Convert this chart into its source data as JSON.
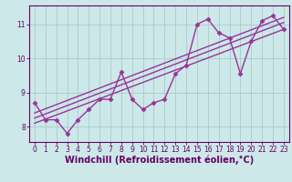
{
  "title": "",
  "xlabel": "Windchill (Refroidissement éolien,°C)",
  "ylabel": "",
  "bg_color": "#cce8e8",
  "line_color": "#993399",
  "grid_color": "#aacccc",
  "xlim": [
    -0.5,
    23.5
  ],
  "ylim": [
    7.55,
    11.55
  ],
  "yticks": [
    8,
    9,
    10,
    11
  ],
  "xticks": [
    0,
    1,
    2,
    3,
    4,
    5,
    6,
    7,
    8,
    9,
    10,
    11,
    12,
    13,
    14,
    15,
    16,
    17,
    18,
    19,
    20,
    21,
    22,
    23
  ],
  "x_data": [
    0,
    1,
    2,
    3,
    4,
    5,
    6,
    7,
    8,
    9,
    10,
    11,
    12,
    13,
    14,
    15,
    16,
    17,
    18,
    19,
    20,
    21,
    22,
    23
  ],
  "y_data": [
    8.7,
    8.2,
    8.2,
    7.8,
    8.2,
    8.5,
    8.8,
    8.8,
    9.6,
    8.8,
    8.5,
    8.7,
    8.8,
    9.55,
    9.8,
    11.0,
    11.15,
    10.75,
    10.6,
    9.55,
    10.5,
    11.1,
    11.25,
    10.85
  ],
  "trend_lines": [
    [
      8.1,
      10.85
    ],
    [
      8.25,
      11.05
    ],
    [
      8.4,
      11.2
    ]
  ],
  "marker": "D",
  "marker_size": 2.5,
  "linewidth": 1.0,
  "font_color": "#660066",
  "tick_fontsize": 5.5,
  "axis_label_fontsize": 7.0
}
